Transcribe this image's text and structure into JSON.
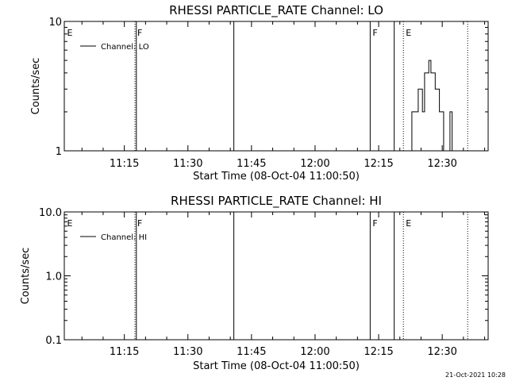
{
  "chart_data": [
    {
      "type": "line",
      "title": "RHESSI PARTICLE_RATE Channel: LO",
      "xlabel": "Start Time (08-Oct-04 11:00:50)",
      "ylabel": "Counts/sec",
      "xaxis": {
        "ticks": [
          {
            "t": "11:15",
            "label": "11:15"
          },
          {
            "t": "11:30",
            "label": "11:30"
          },
          {
            "t": "11:45",
            "label": "11:45"
          },
          {
            "t": "12:00",
            "label": "12:00"
          },
          {
            "t": "12:15",
            "label": "12:15"
          },
          {
            "t": "12:30",
            "label": "12:30"
          }
        ],
        "range": [
          "11:00:50",
          "12:40:50"
        ]
      },
      "yaxis": {
        "scale": "log",
        "range": [
          1,
          10
        ],
        "ticks": [
          {
            "v": 1,
            "label": "1"
          },
          {
            "v": 10,
            "label": "10"
          }
        ]
      },
      "legend": {
        "position": "top-left",
        "entries": [
          "Channel: LO"
        ]
      },
      "series": [
        {
          "name": "Channel: LO",
          "x": [
            "12:22:20",
            "12:22:50",
            "12:23:20",
            "12:23:50",
            "12:24:20",
            "12:24:50",
            "12:25:20",
            "12:25:50",
            "12:26:20",
            "12:26:50",
            "12:27:20",
            "12:27:50",
            "12:28:20",
            "12:28:50",
            "12:29:20",
            "12:29:50",
            "12:30:20",
            "12:30:50",
            "12:31:20",
            "12:31:50",
            "12:32:20",
            "12:32:50",
            "12:33:20"
          ],
          "y": [
            1,
            2,
            2,
            2,
            3,
            3,
            2,
            4,
            4,
            5,
            4,
            4,
            3,
            3,
            2,
            2,
            1,
            1,
            1,
            2,
            1,
            1,
            1
          ]
        }
      ],
      "event_markers": [
        {
          "t": "11:00:55",
          "label": "E",
          "style": "none"
        },
        {
          "t": "11:17:30",
          "label": "F",
          "style": "dotted"
        },
        {
          "t": "11:17:50",
          "label": "",
          "style": "solid"
        },
        {
          "t": "11:40:50",
          "label": "",
          "style": "solid"
        },
        {
          "t": "12:13:00",
          "label": "F",
          "style": "solid"
        },
        {
          "t": "12:18:40",
          "label": "",
          "style": "solid"
        },
        {
          "t": "12:20:50",
          "label": "E",
          "style": "dotted"
        },
        {
          "t": "12:36:00",
          "label": "",
          "style": "dotted"
        }
      ]
    },
    {
      "type": "line",
      "title": "RHESSI PARTICLE_RATE Channel: HI",
      "xlabel": "Start Time (08-Oct-04 11:00:50)",
      "ylabel": "Counts/sec",
      "xaxis": {
        "ticks": [
          {
            "t": "11:15",
            "label": "11:15"
          },
          {
            "t": "11:30",
            "label": "11:30"
          },
          {
            "t": "11:45",
            "label": "11:45"
          },
          {
            "t": "12:00",
            "label": "12:00"
          },
          {
            "t": "12:15",
            "label": "12:15"
          },
          {
            "t": "12:30",
            "label": "12:30"
          }
        ],
        "range": [
          "11:00:50",
          "12:40:50"
        ]
      },
      "yaxis": {
        "scale": "log",
        "range": [
          0.1,
          10
        ],
        "ticks": [
          {
            "v": 0.1,
            "label": "0.1"
          },
          {
            "v": 1,
            "label": "1.0"
          },
          {
            "v": 10,
            "label": "10.0"
          }
        ]
      },
      "legend": {
        "position": "top-left",
        "entries": [
          "Channel: HI"
        ]
      },
      "series": [
        {
          "name": "Channel: HI",
          "x": [],
          "y": []
        }
      ],
      "event_markers": [
        {
          "t": "11:00:55",
          "label": "E",
          "style": "none"
        },
        {
          "t": "11:17:30",
          "label": "F",
          "style": "dotted"
        },
        {
          "t": "11:17:50",
          "label": "",
          "style": "solid"
        },
        {
          "t": "11:40:50",
          "label": "",
          "style": "solid"
        },
        {
          "t": "12:13:00",
          "label": "F",
          "style": "solid"
        },
        {
          "t": "12:18:40",
          "label": "",
          "style": "solid"
        },
        {
          "t": "12:20:50",
          "label": "E",
          "style": "dotted"
        },
        {
          "t": "12:36:00",
          "label": "",
          "style": "dotted"
        }
      ]
    }
  ],
  "footer": {
    "timestamp": "21-Oct-2021 10:28"
  },
  "colors": {
    "background": "#ffffff",
    "foreground": "#000000"
  }
}
